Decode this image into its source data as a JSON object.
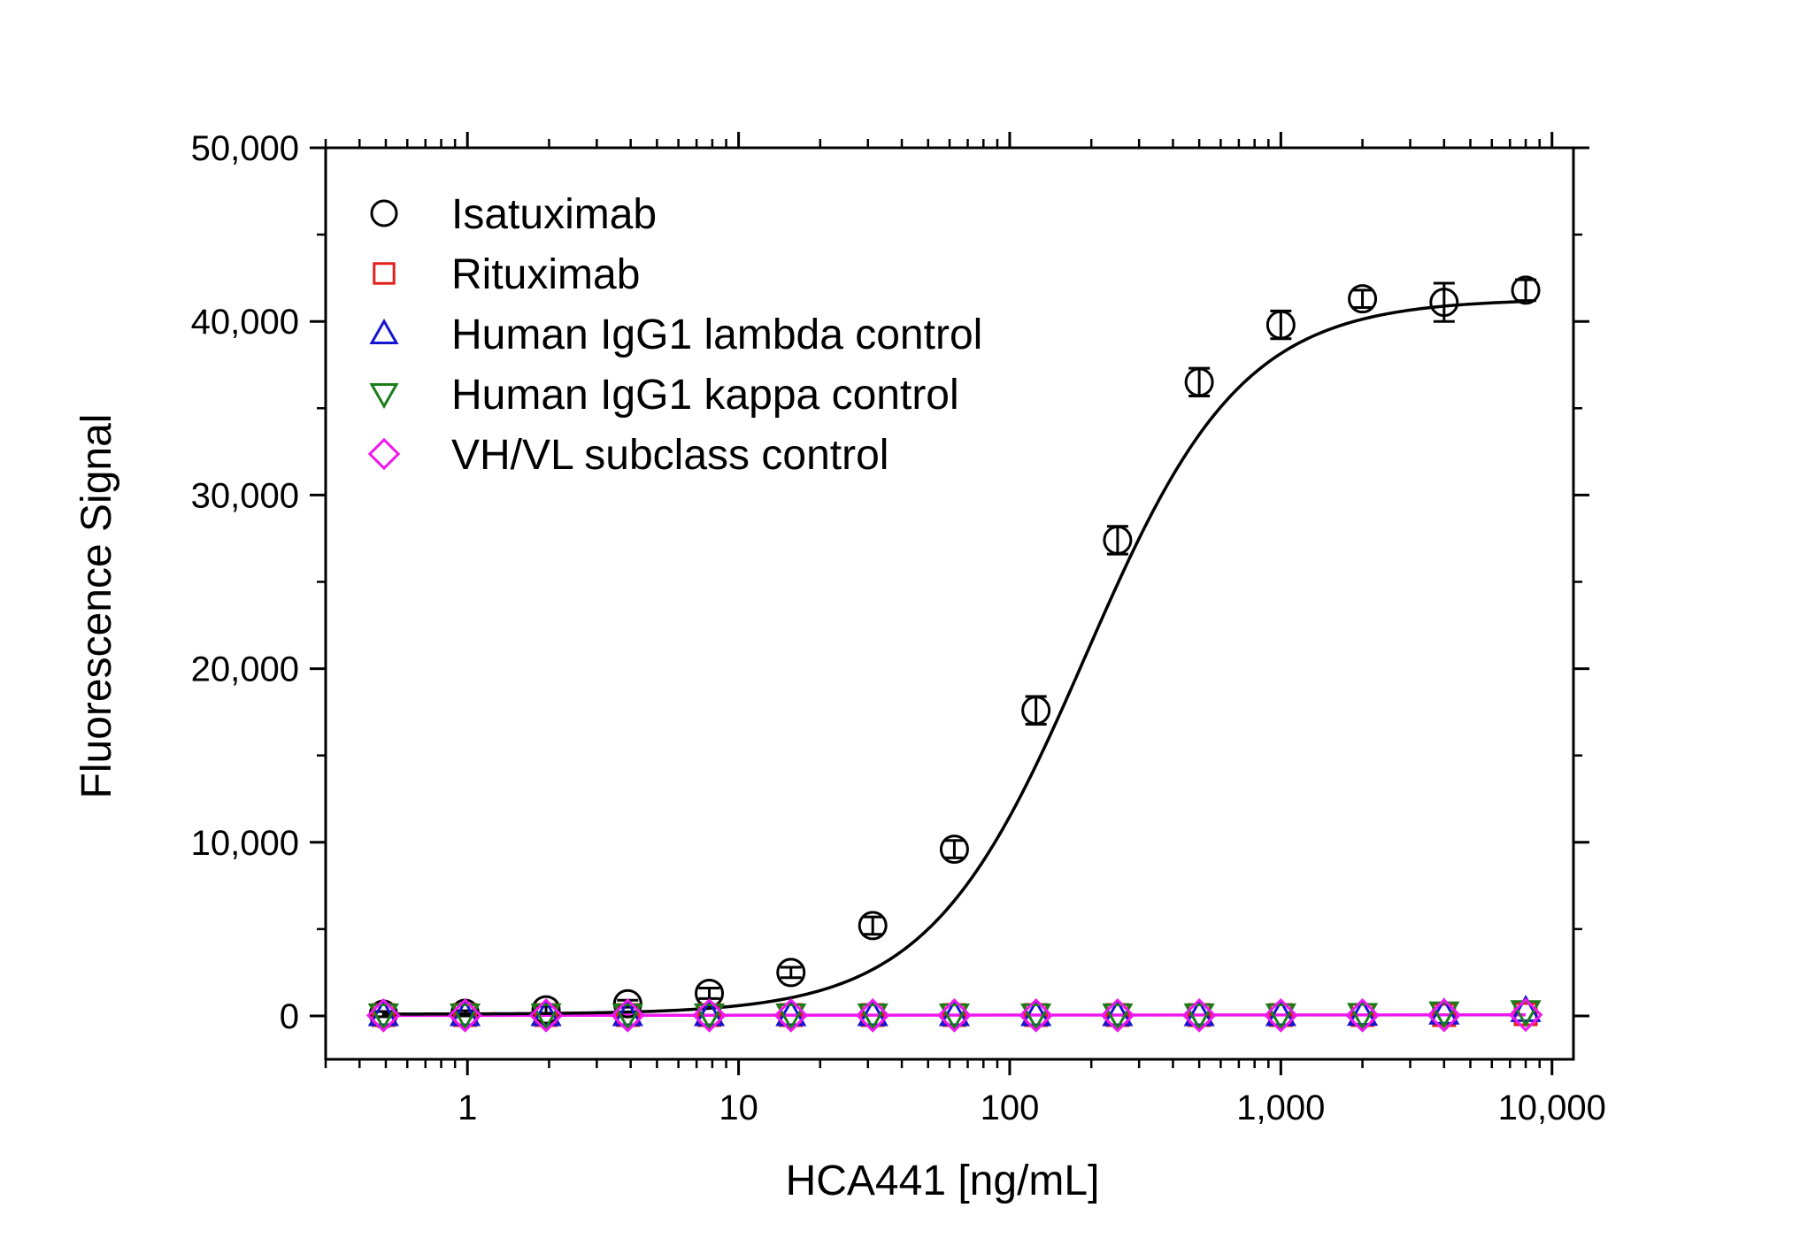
{
  "chart_data": {
    "type": "scatter",
    "title": "",
    "xlabel": "HCA441 [ng/mL]",
    "ylabel": "Fluorescence Signal",
    "x_scale": "log",
    "xlim": [
      0.3,
      12000
    ],
    "ylim": [
      -2500,
      50000
    ],
    "x_ticks": [
      1,
      10,
      100,
      1000,
      10000
    ],
    "x_tick_labels": [
      "1",
      "10",
      "100",
      "1,000",
      "10,000"
    ],
    "y_ticks": [
      0,
      10000,
      20000,
      30000,
      40000,
      50000
    ],
    "y_tick_labels": [
      "0",
      "10,000",
      "20,000",
      "30,000",
      "40,000",
      "50,000"
    ],
    "grid": false,
    "legend_position": "top-left",
    "x": [
      0.49,
      0.98,
      1.95,
      3.9,
      7.8,
      15.6,
      31.25,
      62.5,
      125,
      250,
      500,
      1000,
      2000,
      4000,
      8000
    ],
    "series": [
      {
        "name": "Isatuximab",
        "marker": "circle",
        "color": "#000000",
        "values": [
          100,
          150,
          350,
          700,
          1300,
          2500,
          5200,
          9600,
          17600,
          27400,
          36500,
          39800,
          41300,
          41100,
          41800
        ],
        "errors": [
          150,
          150,
          200,
          200,
          300,
          300,
          500,
          500,
          800,
          800,
          800,
          800,
          500,
          1100,
          600
        ]
      },
      {
        "name": "Rituximab",
        "marker": "square",
        "color": "#e0201b",
        "values": [
          50,
          50,
          50,
          50,
          50,
          50,
          50,
          50,
          50,
          50,
          50,
          50,
          50,
          50,
          100
        ]
      },
      {
        "name": "Human IgG1 lambda control",
        "marker": "triangle-up",
        "color": "#1515d0",
        "values": [
          60,
          60,
          60,
          60,
          60,
          60,
          60,
          60,
          60,
          60,
          60,
          60,
          80,
          150,
          300
        ]
      },
      {
        "name": "Human IgG1 kappa control",
        "marker": "triangle-down",
        "color": "#1a7d1a",
        "values": [
          70,
          70,
          70,
          70,
          70,
          70,
          70,
          70,
          70,
          70,
          70,
          70,
          90,
          180,
          250
        ]
      },
      {
        "name": "VH/VL subclass control",
        "marker": "diamond",
        "color": "#ef17ef",
        "values": [
          30,
          30,
          30,
          30,
          30,
          30,
          30,
          30,
          30,
          30,
          30,
          30,
          30,
          40,
          60
        ]
      }
    ],
    "fit": {
      "series": "Isatuximab",
      "model": "4PL",
      "bottom": 100,
      "top": 41300,
      "ec50": 190,
      "hill": 1.5,
      "color": "#000000"
    },
    "control_fit_color": "#ef17ef"
  }
}
